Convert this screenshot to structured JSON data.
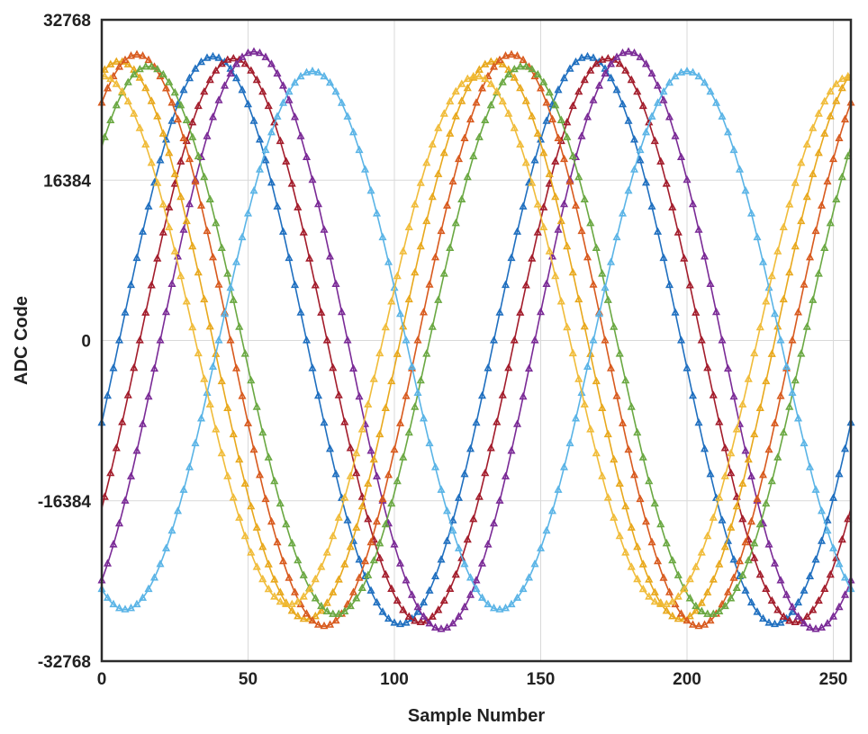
{
  "chart_data": {
    "type": "scatter",
    "title": "",
    "xlabel": "Sample Number",
    "ylabel": "ADC Code",
    "xlim": [
      0,
      256
    ],
    "ylim": [
      -32768,
      32768
    ],
    "x_ticks": [
      0,
      50,
      100,
      150,
      200,
      250
    ],
    "y_ticks": [
      -32768,
      -16384,
      0,
      16384,
      32768
    ],
    "x_tick_labels": [
      "0",
      "50",
      "100",
      "150",
      "200",
      "250"
    ],
    "y_tick_labels": [
      "-32768",
      "-16384",
      "0",
      "16384",
      "32768"
    ],
    "grid": true,
    "legend": "none",
    "markers": "open triangles with sinusoidal fit lines",
    "sample_step": 2,
    "series": [
      {
        "color": "#1f6fbf",
        "amplitude": 29000,
        "period": 128,
        "phase_samples": 6
      },
      {
        "color": "#a31c2b",
        "amplitude": 28800,
        "period": 128,
        "phase_samples": 13
      },
      {
        "color": "#7a2a96",
        "amplitude": 29500,
        "period": 128,
        "phase_samples": 20
      },
      {
        "color": "#e8a81c",
        "amplitude": 28500,
        "period": 128,
        "phase_samples": 102
      },
      {
        "color": "#d85a1e",
        "amplitude": 29200,
        "period": 128,
        "phase_samples": 108
      },
      {
        "color": "#6aa842",
        "amplitude": 28000,
        "period": 128,
        "phase_samples": 112
      },
      {
        "color": "#5ab4e6",
        "amplitude": 27500,
        "period": 128,
        "phase_samples": 40
      },
      {
        "color": "#f0bc3a",
        "amplitude": 27000,
        "period": 128,
        "phase_samples": 96
      }
    ]
  }
}
